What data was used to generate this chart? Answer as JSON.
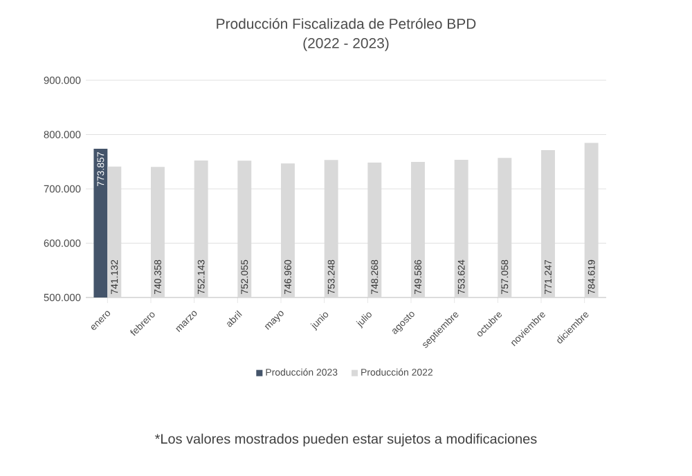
{
  "chart_data": {
    "type": "bar",
    "title": "Producción Fiscalizada de Petróleo BPD",
    "subtitle": "(2022 - 2023)",
    "categories": [
      "enero",
      "febrero",
      "marzo",
      "abril",
      "mayo",
      "junio",
      "julio",
      "agosto",
      "septiembre",
      "octubre",
      "noviembre",
      "diciembre"
    ],
    "series": [
      {
        "name": "Producción 2023",
        "color": "#44546a",
        "values": [
          773857,
          null,
          null,
          null,
          null,
          null,
          null,
          null,
          null,
          null,
          null,
          null
        ],
        "value_labels": [
          "773.857",
          null,
          null,
          null,
          null,
          null,
          null,
          null,
          null,
          null,
          null,
          null
        ]
      },
      {
        "name": "Producción 2022",
        "color": "#d9d9d9",
        "values": [
          741132,
          740358,
          752143,
          752055,
          746960,
          753248,
          748268,
          749586,
          753624,
          757058,
          771247,
          784619
        ],
        "value_labels": [
          "741.132",
          "740.358",
          "752.143",
          "752.055",
          "746.960",
          "753.248",
          "748.268",
          "749.586",
          "753.624",
          "757.058",
          "771.247",
          "784.619"
        ]
      }
    ],
    "ylim": [
      500000,
      900000
    ],
    "yticks": [
      {
        "value": 500000,
        "label": "500.000"
      },
      {
        "value": 600000,
        "label": "600.000"
      },
      {
        "value": 700000,
        "label": "700.000"
      },
      {
        "value": 800000,
        "label": "800.000"
      },
      {
        "value": 900000,
        "label": "900.000"
      }
    ],
    "grid": "y",
    "legend": "bottom",
    "annotations": [
      "*Los valores mostrados pueden estar sujetos a modificaciones"
    ]
  }
}
